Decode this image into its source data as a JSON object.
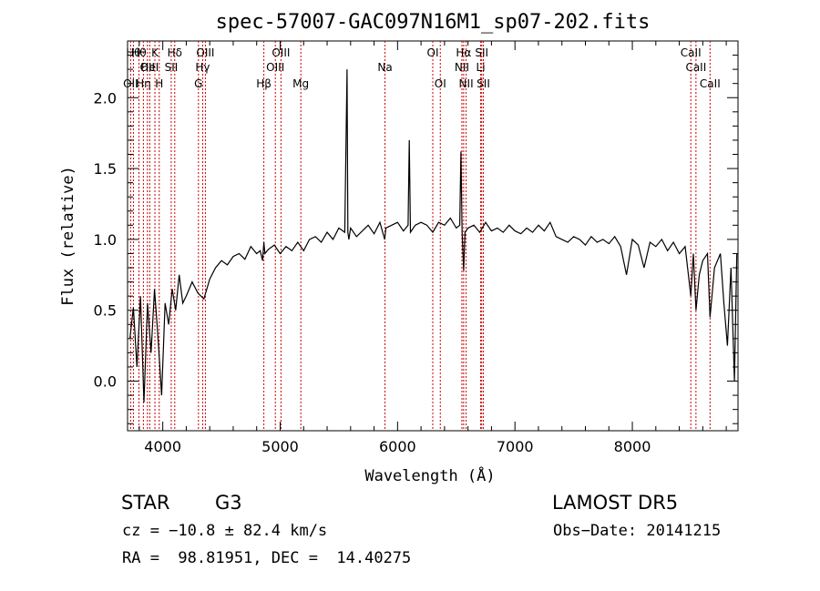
{
  "chart_data": {
    "type": "line",
    "title": "spec-57007-GAC097N16M1_sp07-202.fits",
    "xlabel": "Wavelength (Å)",
    "ylabel": "Flux (relative)",
    "xlim": [
      3700,
      8900
    ],
    "ylim": [
      -0.35,
      2.4
    ],
    "xticks": [
      4000,
      5000,
      6000,
      7000,
      8000
    ],
    "yticks": [
      0.0,
      0.5,
      1.0,
      1.5,
      2.0
    ],
    "xtick_labels": [
      "4000",
      "5000",
      "6000",
      "7000",
      "8000"
    ],
    "ytick_labels": [
      "0.0",
      "0.5",
      "1.0",
      "1.5",
      "2.0"
    ],
    "grid": false,
    "line_color": "#000000",
    "marker_color": "#cc0000",
    "series": [
      {
        "x": [
          3720,
          3750,
          3780,
          3810,
          3840,
          3870,
          3900,
          3930,
          3960,
          3990,
          4020,
          4050,
          4080,
          4110,
          4140,
          4170,
          4200,
          4250,
          4300,
          4350,
          4400,
          4450,
          4500,
          4550,
          4600,
          4650,
          4700,
          4750,
          4800,
          4830,
          4850,
          4861,
          4870,
          4900,
          4950,
          5000,
          5050,
          5100,
          5150,
          5200,
          5250,
          5300,
          5350,
          5400,
          5450,
          5500,
          5550,
          5570,
          5577,
          5585,
          5600,
          5650,
          5700,
          5750,
          5800,
          5850,
          5890,
          5900,
          5950,
          6000,
          6050,
          6090,
          6100,
          6110,
          6150,
          6200,
          6250,
          6300,
          6350,
          6400,
          6450,
          6500,
          6530,
          6540,
          6550,
          6563,
          6575,
          6600,
          6650,
          6700,
          6750,
          6800,
          6850,
          6900,
          6950,
          7000,
          7050,
          7100,
          7150,
          7200,
          7250,
          7300,
          7350,
          7400,
          7450,
          7500,
          7550,
          7600,
          7650,
          7700,
          7750,
          7800,
          7850,
          7900,
          7950,
          8000,
          8050,
          8100,
          8150,
          8200,
          8250,
          8300,
          8350,
          8400,
          8450,
          8498,
          8520,
          8542,
          8570,
          8600,
          8640,
          8662,
          8700,
          8750,
          8780,
          8810,
          8840,
          8870,
          8890
        ],
        "y": [
          0.3,
          0.52,
          0.1,
          0.6,
          -0.15,
          0.55,
          0.2,
          0.65,
          0.3,
          -0.1,
          0.55,
          0.4,
          0.65,
          0.5,
          0.75,
          0.55,
          0.6,
          0.7,
          0.62,
          0.58,
          0.72,
          0.8,
          0.85,
          0.82,
          0.88,
          0.9,
          0.86,
          0.95,
          0.9,
          0.92,
          0.85,
          0.98,
          0.9,
          0.93,
          0.96,
          0.9,
          0.95,
          0.92,
          0.98,
          0.92,
          1.0,
          1.02,
          0.98,
          1.05,
          1.0,
          1.08,
          1.05,
          2.2,
          1.05,
          1.0,
          1.08,
          1.02,
          1.06,
          1.1,
          1.04,
          1.12,
          1.0,
          1.08,
          1.1,
          1.12,
          1.06,
          1.1,
          1.7,
          1.05,
          1.1,
          1.12,
          1.1,
          1.05,
          1.12,
          1.1,
          1.15,
          1.08,
          1.1,
          1.62,
          1.05,
          0.78,
          1.05,
          1.08,
          1.1,
          1.05,
          1.12,
          1.06,
          1.08,
          1.05,
          1.1,
          1.06,
          1.04,
          1.08,
          1.05,
          1.1,
          1.06,
          1.12,
          1.02,
          1.0,
          0.98,
          1.02,
          1.0,
          0.96,
          1.02,
          0.98,
          1.0,
          0.97,
          1.02,
          0.95,
          0.75,
          1.0,
          0.96,
          0.8,
          0.98,
          0.95,
          1.0,
          0.92,
          0.98,
          0.9,
          0.95,
          0.6,
          0.9,
          0.5,
          0.75,
          0.85,
          0.9,
          0.45,
          0.8,
          0.9,
          0.55,
          0.25,
          0.8,
          0.0,
          0.9
        ]
      }
    ],
    "lines": [
      {
        "x": 3726,
        "label": "OII",
        "row": 3
      },
      {
        "x": 3750,
        "label": "Hθ",
        "row": 1
      },
      {
        "x": 3797,
        "label": "Hθ",
        "row": 1
      },
      {
        "x": 3835,
        "label": "Hη",
        "row": 3
      },
      {
        "x": 3869,
        "label": "OII",
        "row": 2
      },
      {
        "x": 3889,
        "label": "HeI",
        "row": 2
      },
      {
        "x": 3933,
        "label": "K",
        "row": 1
      },
      {
        "x": 3970,
        "label": "H",
        "row": 3
      },
      {
        "x": 4072,
        "label": "SII",
        "row": 2
      },
      {
        "x": 4102,
        "label": "Hδ",
        "row": 1
      },
      {
        "x": 4304,
        "label": "G",
        "row": 3
      },
      {
        "x": 4340,
        "label": "Hγ",
        "row": 2
      },
      {
        "x": 4363,
        "label": "OIII",
        "row": 1
      },
      {
        "x": 4861,
        "label": "Hβ",
        "row": 3
      },
      {
        "x": 4959,
        "label": "OIII",
        "row": 2
      },
      {
        "x": 5007,
        "label": "OIII",
        "row": 1
      },
      {
        "x": 5176,
        "label": "Mg",
        "row": 3
      },
      {
        "x": 5893,
        "label": "Na",
        "row": 2
      },
      {
        "x": 6300,
        "label": "OI",
        "row": 1
      },
      {
        "x": 6364,
        "label": "OI",
        "row": 3
      },
      {
        "x": 6548,
        "label": "NII",
        "row": 2
      },
      {
        "x": 6563,
        "label": "Hα",
        "row": 1
      },
      {
        "x": 6584,
        "label": "NII",
        "row": 3
      },
      {
        "x": 6708,
        "label": "Li",
        "row": 2
      },
      {
        "x": 6717,
        "label": "SII",
        "row": 1
      },
      {
        "x": 6731,
        "label": "SII",
        "row": 3
      },
      {
        "x": 8498,
        "label": "CaII",
        "row": 1
      },
      {
        "x": 8542,
        "label": "CaII",
        "row": 2
      },
      {
        "x": 8662,
        "label": "CaII",
        "row": 3
      }
    ]
  },
  "footer": {
    "class_label": "STAR",
    "subclass": "G3",
    "survey": "LAMOST DR5",
    "velocity": "cz = −10.8 ± 82.4 km/s",
    "obs_date": "Obs−Date: 20141215",
    "coords": "RA =  98.81951, DEC =  14.40275"
  }
}
